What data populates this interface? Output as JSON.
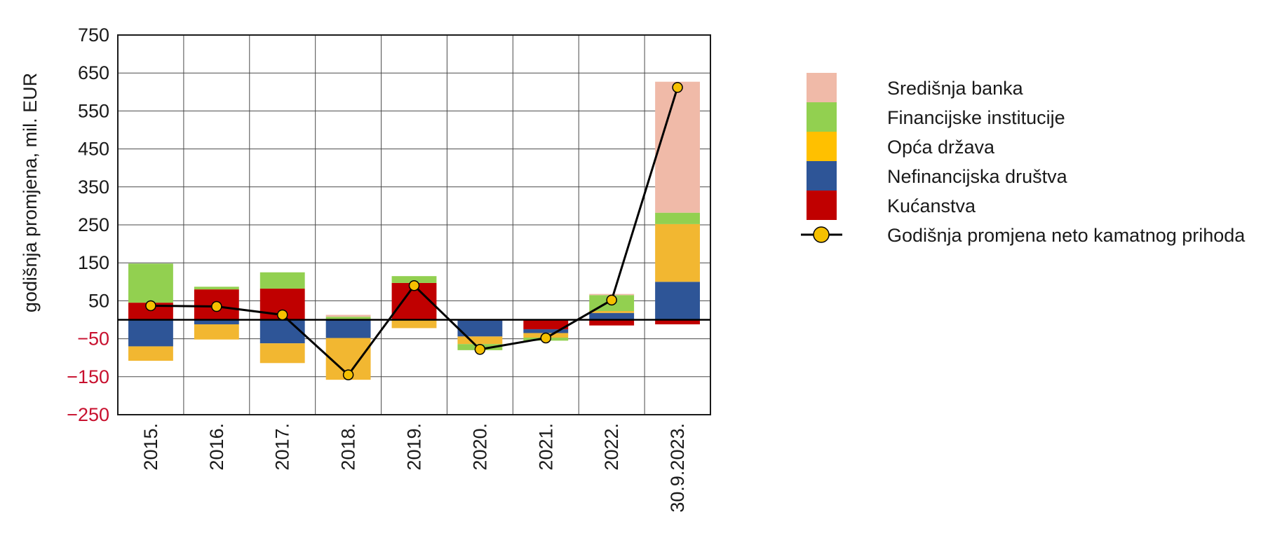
{
  "chart_data": {
    "type": "bar",
    "stacked": true,
    "title": "",
    "xlabel": "",
    "ylabel": "godišnja promjena, mil. EUR",
    "ylim": [
      -250,
      750
    ],
    "yticks": [
      750,
      650,
      550,
      450,
      350,
      250,
      150,
      50,
      -50,
      -150,
      -250
    ],
    "ytick_labels": [
      "750",
      "650",
      "550",
      "450",
      "350",
      "250",
      "150",
      "50",
      "−50",
      "−150",
      "−250"
    ],
    "negative_tick_color": "#c8102e",
    "zero_line_value": 0,
    "categories": [
      "2015.",
      "2016.",
      "2017.",
      "2018.",
      "2019.",
      "2020.",
      "2021.",
      "2022.",
      "30.9.2023."
    ],
    "series": [
      {
        "name": "Kućanstva",
        "color": "#c00000",
        "values": [
          45,
          80,
          82,
          2,
          97,
          -2,
          -25,
          -15,
          -12
        ]
      },
      {
        "name": "Nefinancijska društva",
        "color": "#2e5597",
        "values": [
          -70,
          -12,
          -62,
          -48,
          0,
          -42,
          -10,
          18,
          100
        ]
      },
      {
        "name": "Opća država",
        "color": "#f2b731",
        "values": [
          -38,
          -40,
          -52,
          -110,
          -22,
          -20,
          -12,
          5,
          152
        ]
      },
      {
        "name": "Financijske institucije",
        "color": "#92d050",
        "values": [
          103,
          7,
          43,
          6,
          18,
          -16,
          -8,
          42,
          30
        ]
      },
      {
        "name": "Središnja banka",
        "color": "#f0baa8",
        "values": [
          0,
          0,
          0,
          5,
          0,
          0,
          0,
          3,
          345
        ]
      }
    ],
    "line": {
      "name": "Godišnja promjena neto kamatnog prihoda",
      "color": "#000000",
      "marker_color": "#f5c000",
      "values": [
        37,
        35,
        13,
        -145,
        90,
        -78,
        -48,
        52,
        612
      ]
    },
    "legend": {
      "placement": "right",
      "order": [
        "Središnja banka",
        "Financijske institucije",
        "Opća država",
        "Nefinancijska društva",
        "Kućanstva",
        "Godišnja promjena neto kamatnog prihoda"
      ]
    },
    "legend_colors": {
      "Središnja banka": "#f0baa8",
      "Financijske institucije": "#92d050",
      "Opća država": "#ffc000",
      "Nefinancijska društva": "#2e5597",
      "Kućanstva": "#c00000"
    },
    "grid": true
  }
}
